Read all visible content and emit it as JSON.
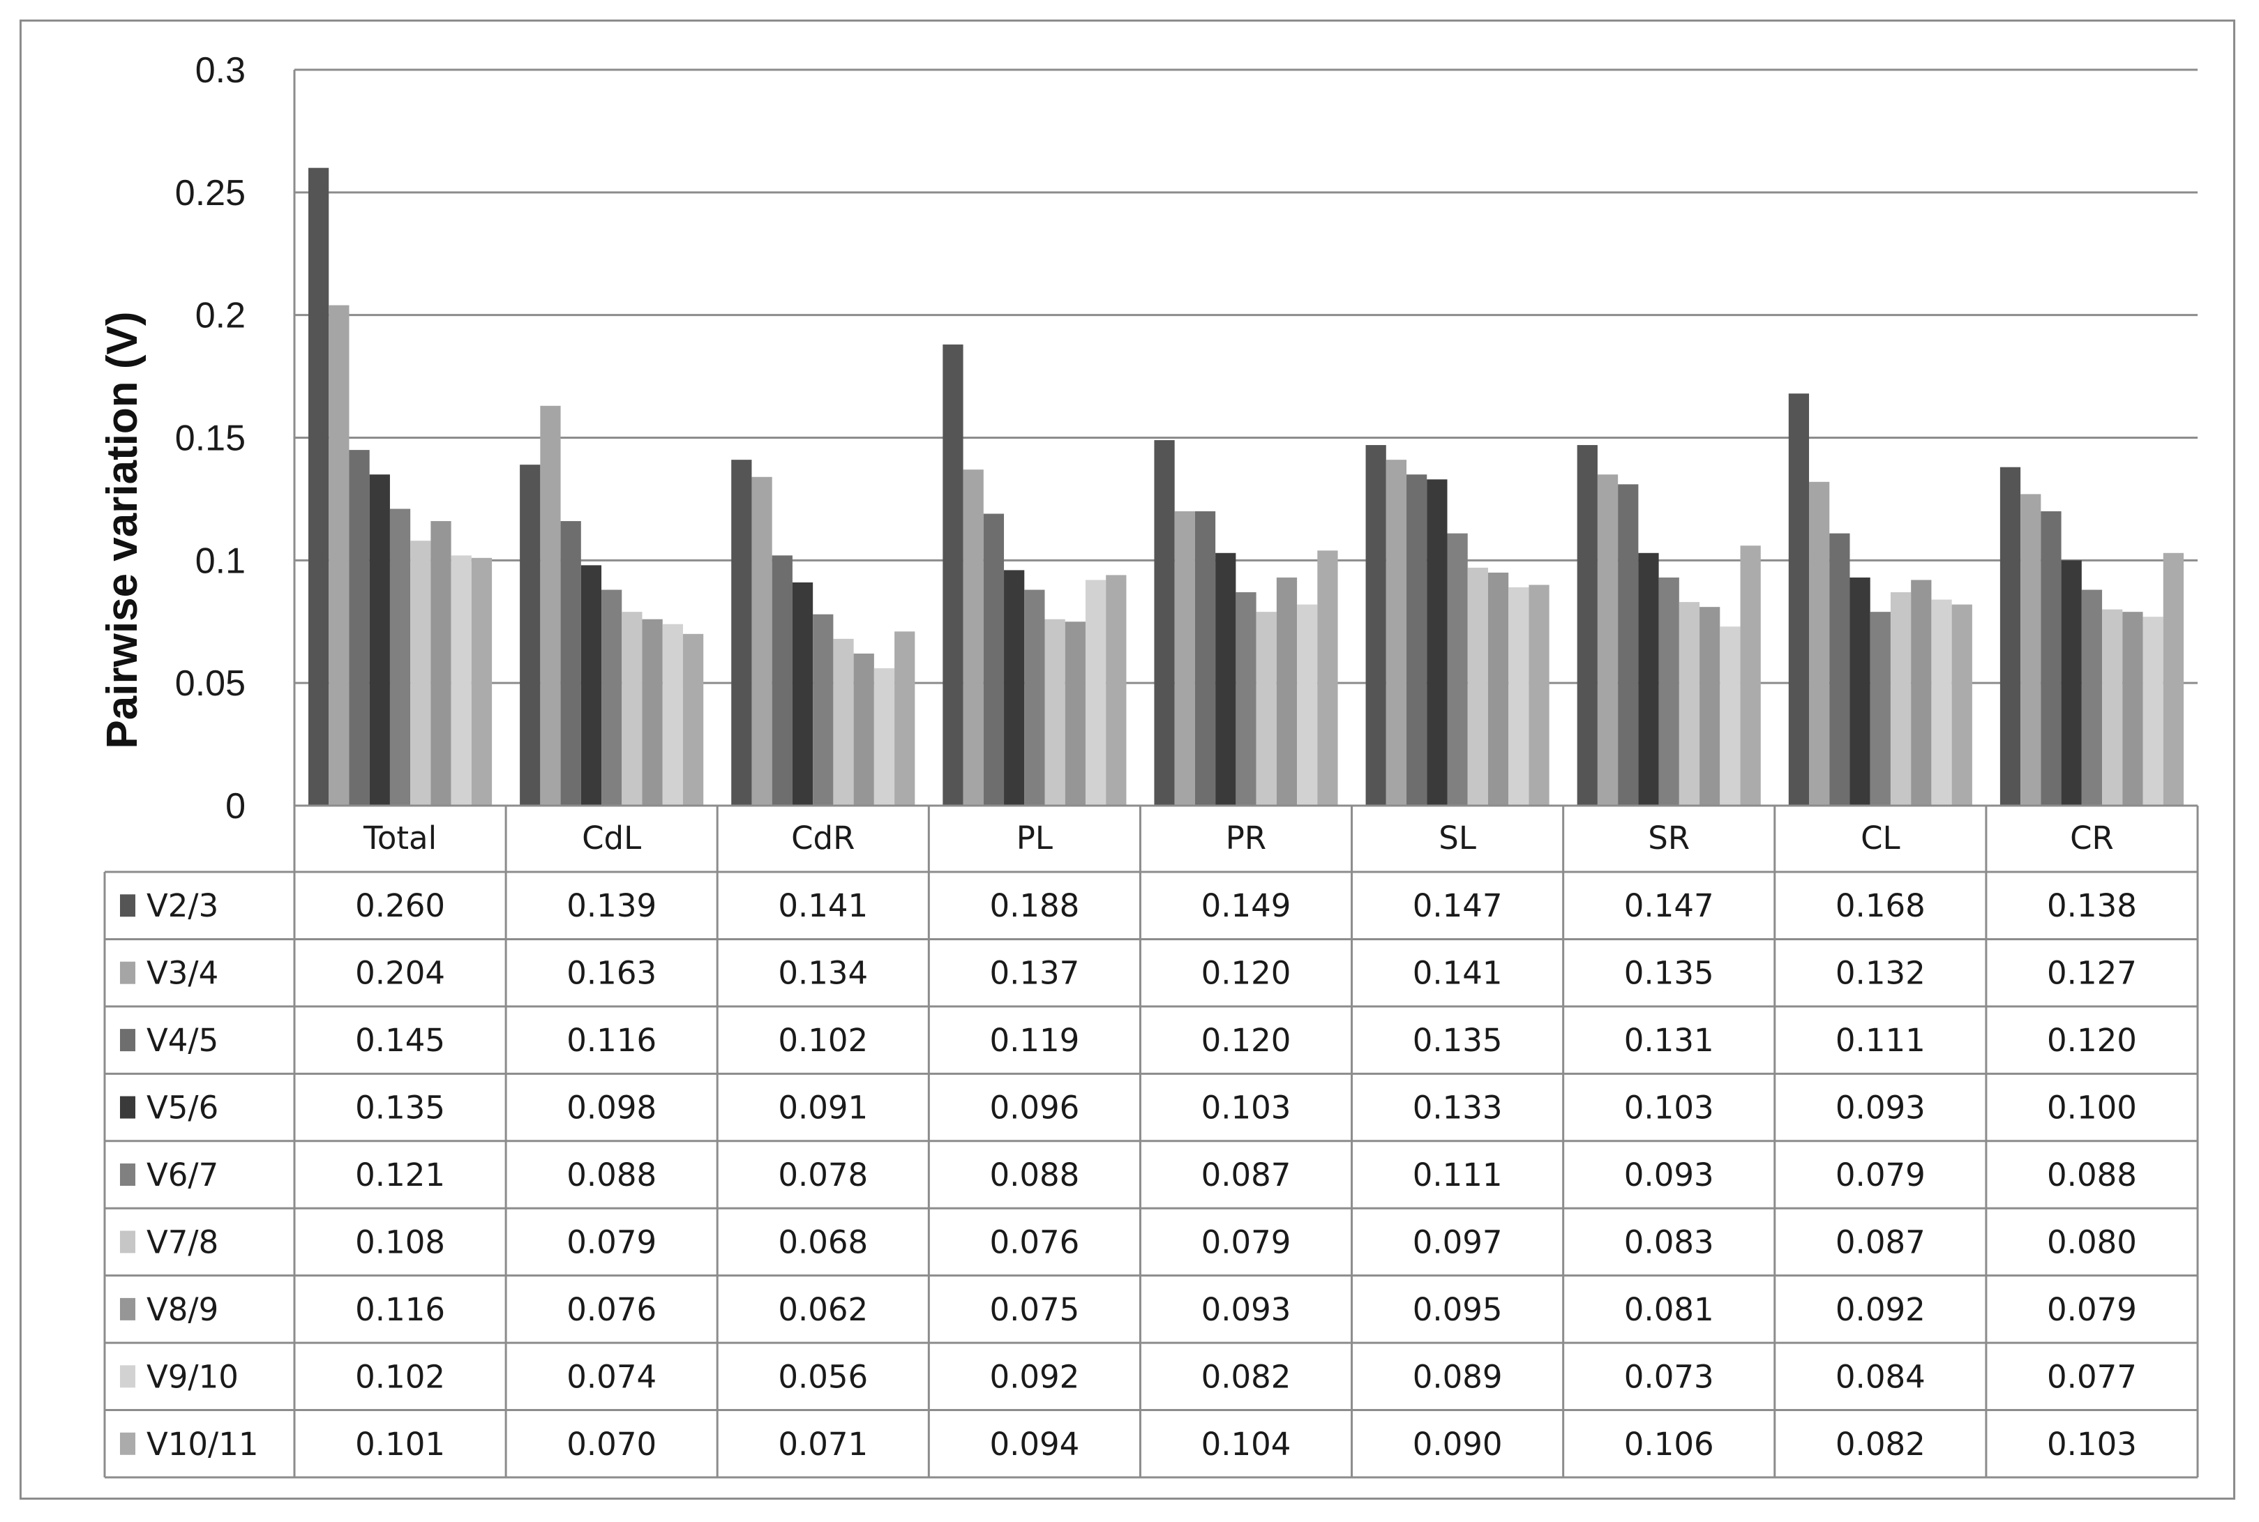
{
  "chart_data": {
    "type": "bar",
    "ylabel": "Pairwise variation (V)",
    "xlabel": "",
    "title": "",
    "ylim": [
      0,
      0.3
    ],
    "yticks": [
      "0",
      "0.05",
      "0.1",
      "0.15",
      "0.2",
      "0.25",
      "0.3"
    ],
    "grid": true,
    "legend": "data-table",
    "categories": [
      "Total",
      "CdL",
      "CdR",
      "PL",
      "PR",
      "SL",
      "SR",
      "CL",
      "CR"
    ],
    "series": [
      {
        "name": "V2/3",
        "color": "#555555",
        "values": [
          0.26,
          0.139,
          0.141,
          0.188,
          0.149,
          0.147,
          0.147,
          0.168,
          0.138
        ]
      },
      {
        "name": "V3/4",
        "color": "#a5a5a5",
        "values": [
          0.204,
          0.163,
          0.134,
          0.137,
          0.12,
          0.141,
          0.135,
          0.132,
          0.127
        ]
      },
      {
        "name": "V4/5",
        "color": "#6e6e6e",
        "values": [
          0.145,
          0.116,
          0.102,
          0.119,
          0.12,
          0.135,
          0.131,
          0.111,
          0.12
        ]
      },
      {
        "name": "V5/6",
        "color": "#3a3a3a",
        "values": [
          0.135,
          0.098,
          0.091,
          0.096,
          0.103,
          0.133,
          0.103,
          0.093,
          0.1
        ]
      },
      {
        "name": "V6/7",
        "color": "#808080",
        "values": [
          0.121,
          0.088,
          0.078,
          0.088,
          0.087,
          0.111,
          0.093,
          0.079,
          0.088
        ]
      },
      {
        "name": "V7/8",
        "color": "#c6c6c6",
        "values": [
          0.108,
          0.079,
          0.068,
          0.076,
          0.079,
          0.097,
          0.083,
          0.087,
          0.08
        ]
      },
      {
        "name": "V8/9",
        "color": "#969696",
        "values": [
          0.116,
          0.076,
          0.062,
          0.075,
          0.093,
          0.095,
          0.081,
          0.092,
          0.079
        ]
      },
      {
        "name": "V9/10",
        "color": "#d2d2d2",
        "values": [
          0.102,
          0.074,
          0.056,
          0.092,
          0.082,
          0.089,
          0.073,
          0.084,
          0.077
        ]
      },
      {
        "name": "V10/11",
        "color": "#ababab",
        "values": [
          0.101,
          0.07,
          0.071,
          0.094,
          0.104,
          0.09,
          0.106,
          0.082,
          0.103
        ]
      }
    ],
    "table_cells": [
      [
        "0.260",
        "0.139",
        "0.141",
        "0.188",
        "0.149",
        "0.147",
        "0.147",
        "0.168",
        "0.138"
      ],
      [
        "0.204",
        "0.163",
        "0.134",
        "0.137",
        "0.120",
        "0.141",
        "0.135",
        "0.132",
        "0.127"
      ],
      [
        "0.145",
        "0.116",
        "0.102",
        "0.119",
        "0.120",
        "0.135",
        "0.131",
        "0.111",
        "0.120"
      ],
      [
        "0.135",
        "0.098",
        "0.091",
        "0.096",
        "0.103",
        "0.133",
        "0.103",
        "0.093",
        "0.100"
      ],
      [
        "0.121",
        "0.088",
        "0.078",
        "0.088",
        "0.087",
        "0.111",
        "0.093",
        "0.079",
        "0.088"
      ],
      [
        "0.108",
        "0.079",
        "0.068",
        "0.076",
        "0.079",
        "0.097",
        "0.083",
        "0.087",
        "0.080"
      ],
      [
        "0.116",
        "0.076",
        "0.062",
        "0.075",
        "0.093",
        "0.095",
        "0.081",
        "0.092",
        "0.079"
      ],
      [
        "0.102",
        "0.074",
        "0.056",
        "0.092",
        "0.082",
        "0.089",
        "0.073",
        "0.084",
        "0.077"
      ],
      [
        "0.101",
        "0.070",
        "0.071",
        "0.094",
        "0.104",
        "0.090",
        "0.106",
        "0.082",
        "0.103"
      ]
    ]
  }
}
